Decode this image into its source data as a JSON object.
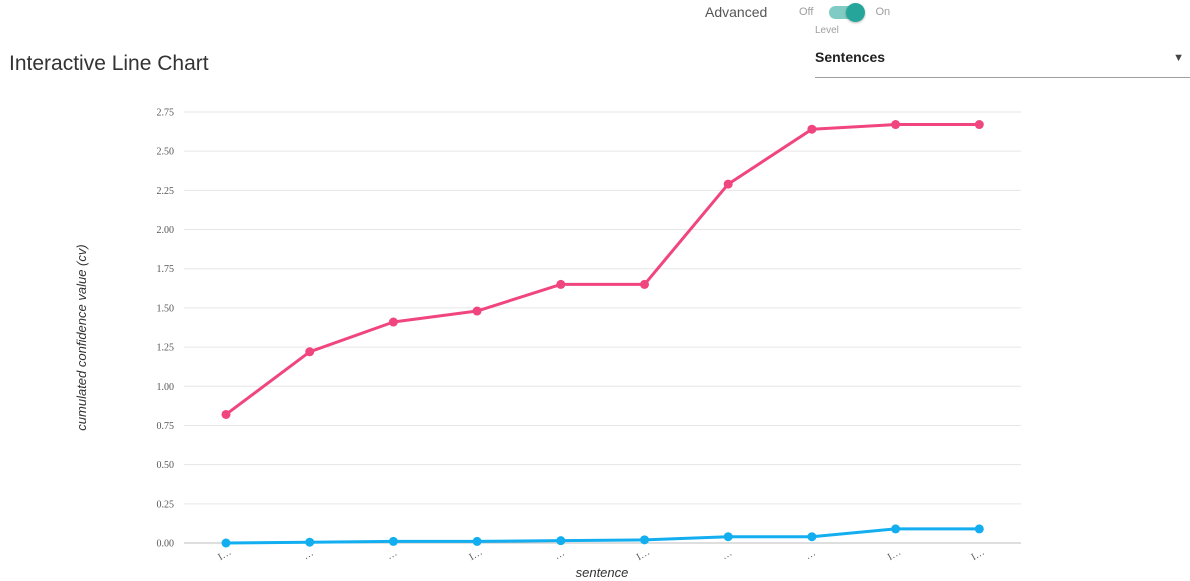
{
  "header": {
    "title": "Interactive Line Chart"
  },
  "advanced": {
    "label": "Advanced",
    "off_label": "Off",
    "on_label": "On",
    "enabled": true
  },
  "level": {
    "label": "Level",
    "value": "Sentences"
  },
  "colors": {
    "series_pink": "#f0457f",
    "series_blue": "#12aef0",
    "gridline": "#e6e6e6",
    "toggle_on": "#26a69a"
  },
  "chart_data": {
    "type": "line",
    "xlabel": "sentence",
    "ylabel": "cumulated confidence value (cv)",
    "ylim": [
      0,
      2.75
    ],
    "yticks": [
      "0.00",
      "0.25",
      "0.50",
      "0.75",
      "1.00",
      "1.25",
      "1.50",
      "1.75",
      "2.00",
      "2.25",
      "2.50",
      "2.75"
    ],
    "categories": [
      "I…",
      "…",
      "…",
      "I…",
      "…",
      "I…",
      "…",
      "…",
      "I…",
      "I…"
    ],
    "grid": true,
    "legend": "none",
    "series": [
      {
        "color": "#f0457f",
        "values": [
          0.82,
          1.22,
          1.41,
          1.48,
          1.65,
          1.65,
          2.29,
          2.64,
          2.67,
          2.67
        ]
      },
      {
        "color": "#12aef0",
        "values": [
          0.0,
          0.005,
          0.01,
          0.01,
          0.015,
          0.02,
          0.04,
          0.04,
          0.09,
          0.09
        ]
      }
    ]
  }
}
